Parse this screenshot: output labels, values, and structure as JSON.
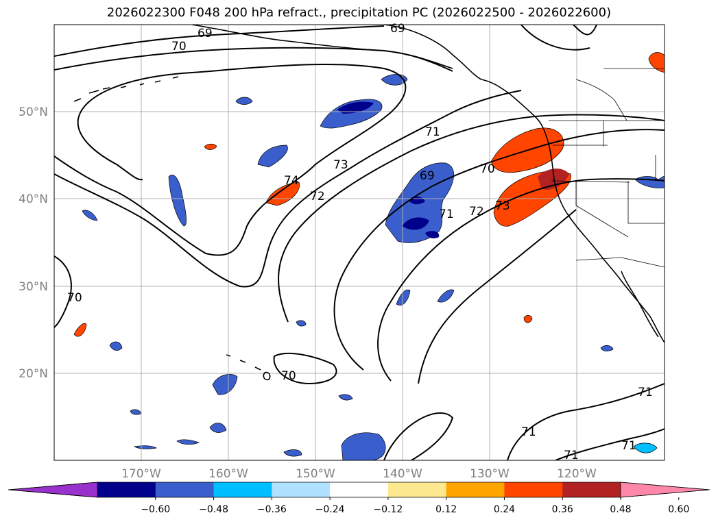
{
  "title": "2026022300 F048 200 hPa refract., precipitation PC (2026022500 - 2026022600)",
  "longitude_labels": [
    "170°W",
    "160°W",
    "150°W",
    "140°W",
    "130°W",
    "120°W"
  ],
  "latitude_labels": [
    "50°N",
    "40°N",
    "30°N",
    "20°N"
  ],
  "contour_labels": [
    "69",
    "70",
    "69",
    "71",
    "73",
    "74",
    "72",
    "69",
    "70",
    "72",
    "73",
    "71",
    "70",
    "70",
    "71",
    "71",
    "71",
    "71"
  ],
  "colorbar": {
    "colors": [
      "#9932cc",
      "#00008b",
      "#3a5fcd",
      "#00bfff",
      "#b0e2ff",
      "#ffffff",
      "#fce98f",
      "#ffa500",
      "#ff4500",
      "#b22222",
      "#ff88aa"
    ],
    "tick_labels": [
      "−0.60",
      "−0.48",
      "−0.36",
      "−0.24",
      "−0.12",
      "0.12",
      "0.24",
      "0.36",
      "0.48",
      "0.60"
    ]
  },
  "colors": {
    "grid": "#b0b0b0",
    "contour": "#000000",
    "coast": "#000000"
  }
}
